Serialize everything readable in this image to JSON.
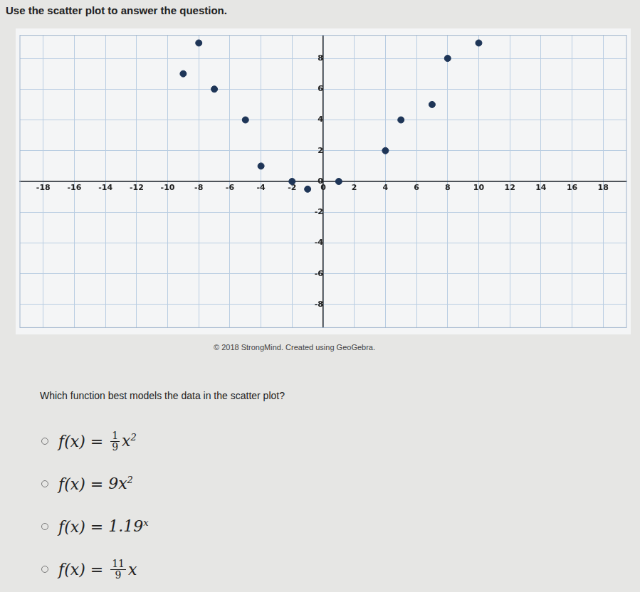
{
  "header": "Use the scatter plot to answer the question.",
  "chart_data": {
    "type": "scatter",
    "x": [
      -9,
      -8,
      -7,
      -5,
      -4,
      -2,
      -1,
      1,
      4,
      5,
      7,
      8,
      10
    ],
    "values": [
      7,
      9,
      6,
      4,
      1,
      0,
      -0.5,
      0,
      2,
      4,
      5,
      8,
      9
    ],
    "color": "#1e3557",
    "marker": "circle",
    "xlim": [
      -19.5,
      19.5
    ],
    "ylim": [
      -9.5,
      9.5
    ],
    "xticks": [
      -18,
      -16,
      -14,
      -12,
      -10,
      -8,
      -6,
      -4,
      -2,
      0,
      2,
      4,
      6,
      8,
      10,
      12,
      14,
      16,
      18
    ],
    "yticks": [
      -8,
      -6,
      -4,
      -2,
      0,
      2,
      4,
      6,
      8
    ],
    "grid": true
  },
  "credit": "© 2018 StrongMind. Created using GeoGebra.",
  "question": "Which function best models the data in the scatter plot?",
  "choices": [
    {
      "prefix": "f(x) = ",
      "num": "1",
      "den": "9",
      "base": "x",
      "sup": "2"
    },
    {
      "prefix": "f(x) = ",
      "base": "9x",
      "sup": "2"
    },
    {
      "prefix": "f(x) = ",
      "base": "1.19",
      "sup": "x"
    },
    {
      "prefix": "f(x) = ",
      "num": "11",
      "den": "9",
      "base": "x"
    }
  ]
}
